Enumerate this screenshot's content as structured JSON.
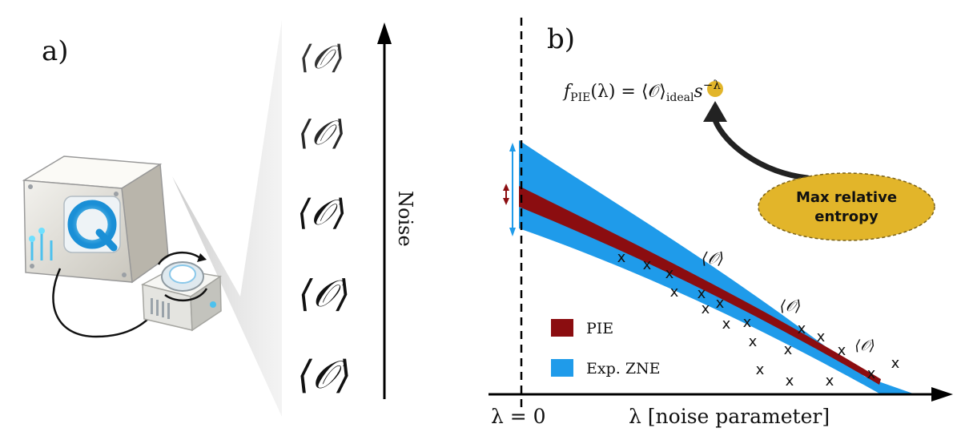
{
  "panel_a": {
    "label": "a)",
    "axis_label": "Noise",
    "observable_labels": [
      "⟨𝒪⟩",
      "⟨𝒪⟩",
      "⟨𝒪⟩",
      "⟨𝒪⟩",
      "⟨𝒪⟩"
    ],
    "device_icon_letter": "Q"
  },
  "panel_b": {
    "label": "b)",
    "formula": {
      "f": "f",
      "f_sub": "PIE",
      "mid": "(λ) = ⟨𝒪⟩",
      "ideal_sub": "ideal",
      "s": "s",
      "exp": "−λ"
    },
    "bubble_line1": "Max relative",
    "bubble_line2": "entropy",
    "zero_label": "λ = 0",
    "x_axis_label": "λ [noise parameter]",
    "observable_marks": [
      "⟨𝒪⟩",
      "⟨𝒪⟩",
      "⟨𝒪⟩"
    ],
    "marker": "x",
    "legend": [
      {
        "label": "PIE",
        "color": "#8b0d10"
      },
      {
        "label": "Exp. ZNE",
        "color": "#1f9bea"
      }
    ]
  },
  "colors": {
    "band": "#1f9bea",
    "pie": "#8b0d10",
    "bubble": "#e2b52a"
  }
}
